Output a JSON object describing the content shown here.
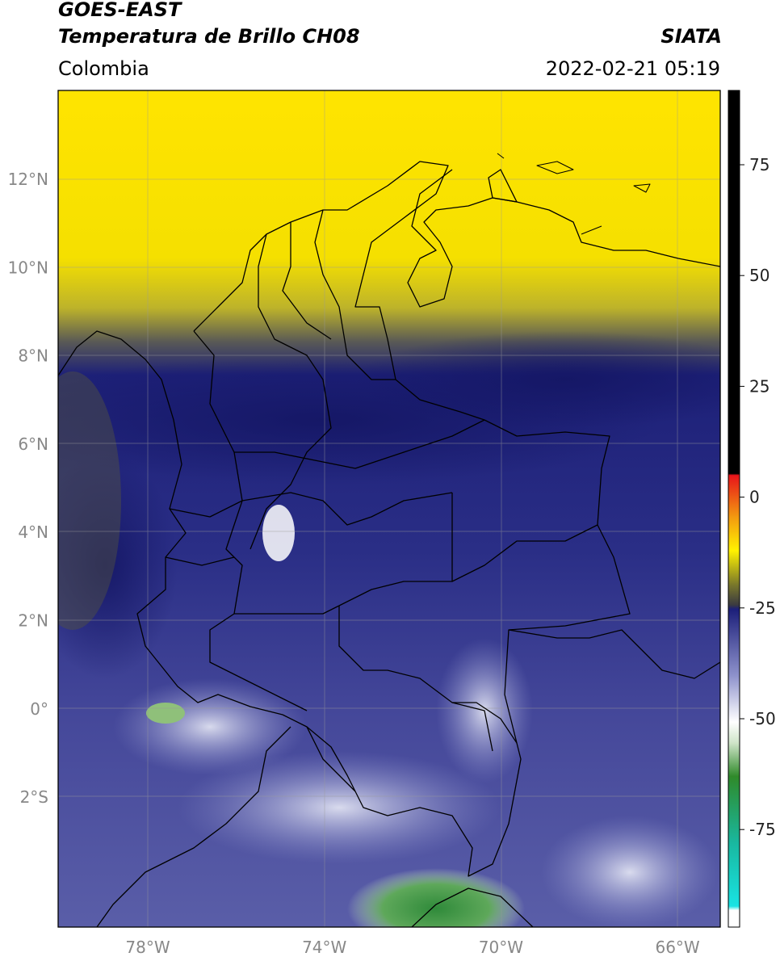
{
  "header": {
    "satellite": "GOES-EAST",
    "product": "Temperatura de Brillo CH08",
    "organization": "SIATA",
    "region": "Colombia",
    "timestamp": "2022-02-21 05:19"
  },
  "map": {
    "lat_ticks": [
      "12°N",
      "10°N",
      "8°N",
      "6°N",
      "4°N",
      "2°N",
      "0°",
      "2°S"
    ],
    "lon_ticks": [
      "78°W",
      "74°W",
      "70°W",
      "66°W"
    ]
  },
  "colorbar": {
    "ticks": [
      "75",
      "50",
      "25",
      "0",
      "-25",
      "-50",
      "-75"
    ],
    "stops": {
      "black": "#000000",
      "red": "#e8141a",
      "orange": "#f39a10",
      "yellow": "#fff200",
      "olive": "#7c7a2a",
      "navy": "#1c1f7a",
      "periwinkle": "#8f93cc",
      "white": "#ffffff",
      "green": "#2f8a2a",
      "teal": "#19b8a0",
      "cyan": "#19e3e3"
    }
  }
}
